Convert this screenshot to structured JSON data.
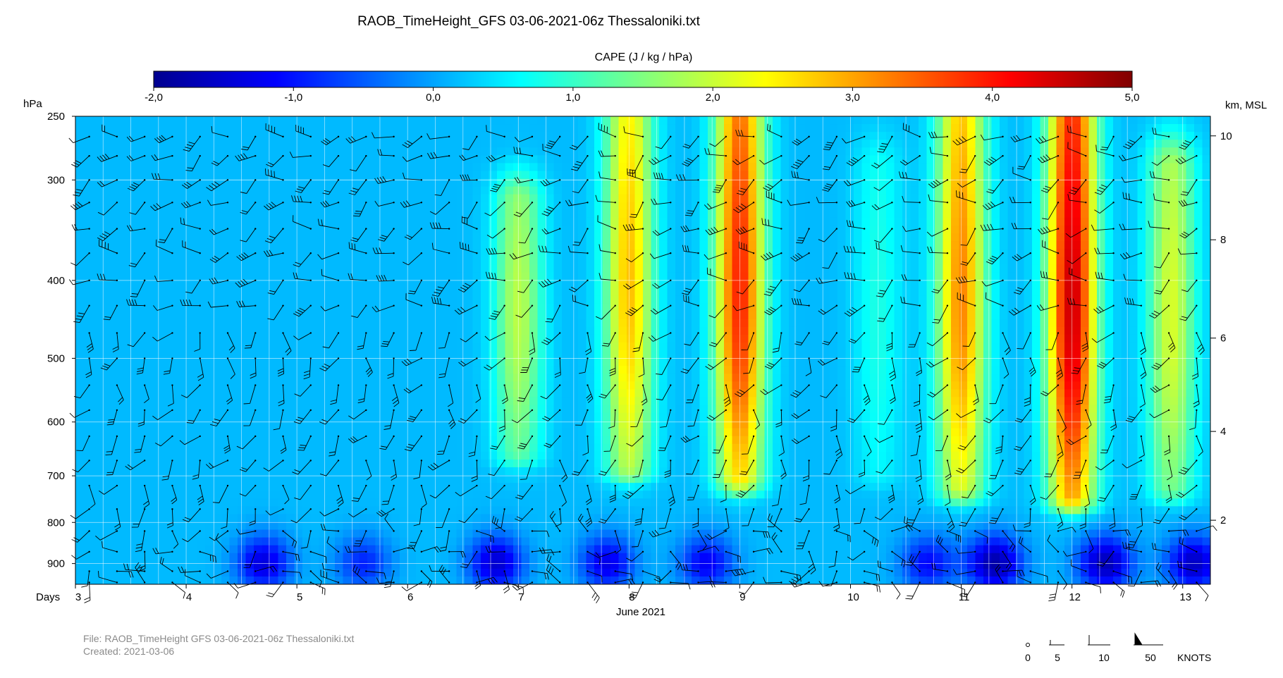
{
  "chart_data": {
    "type": "heatmap",
    "title": "RAOB_TimeHeight_GFS 03-06-2021-06z Thessaloniki.txt",
    "colorbar": {
      "label": "CAPE (J / kg / hPa)",
      "min": -2.0,
      "max": 5.0,
      "ticks": [
        "-2,0",
        "-1,0",
        "0,0",
        "1,0",
        "2,0",
        "3,0",
        "4,0",
        "5,0"
      ],
      "colors": [
        "#00008f",
        "#0000ff",
        "#0080ff",
        "#00ffff",
        "#80ff80",
        "#ffff00",
        "#ff8000",
        "#ff0000",
        "#800000"
      ]
    },
    "y_left": {
      "label": "hPa",
      "range": [
        955,
        250
      ],
      "ticks": [
        250,
        300,
        400,
        500,
        600,
        700,
        800,
        900
      ]
    },
    "y_right": {
      "label": "km, MSL",
      "ticks": [
        10,
        8,
        6,
        4,
        2
      ]
    },
    "x": {
      "label": "Days",
      "range": [
        3.0,
        13.25
      ],
      "ticks": [
        "3",
        "4",
        "5",
        "6",
        "7",
        "8",
        "9",
        "10",
        "11",
        "12",
        "13"
      ],
      "month_label": "June 2021"
    },
    "cape_columns": [
      {
        "day": 7.0,
        "max": 1.9,
        "top": 320,
        "bottom": 650
      },
      {
        "day": 8.0,
        "max": 2.8,
        "top": 250,
        "bottom": 680
      },
      {
        "day": 9.0,
        "max": 3.9,
        "top": 250,
        "bottom": 700
      },
      {
        "day": 10.25,
        "max": 0.8,
        "top": 290,
        "bottom": 690
      },
      {
        "day": 11.0,
        "max": 3.2,
        "top": 250,
        "bottom": 720
      },
      {
        "day": 12.0,
        "max": 4.5,
        "top": 250,
        "bottom": 740
      },
      {
        "day": 12.9,
        "max": 2.1,
        "top": 290,
        "bottom": 720
      }
    ],
    "low_level_minima": [
      {
        "day": 4.7,
        "value": -1.4
      },
      {
        "day": 5.6,
        "value": -0.9
      },
      {
        "day": 6.8,
        "value": -1.5
      },
      {
        "day": 7.8,
        "value": -1.3
      },
      {
        "day": 8.7,
        "value": -1.2
      },
      {
        "day": 10.7,
        "value": -1.1
      },
      {
        "day": 11.3,
        "value": -1.8
      },
      {
        "day": 12.3,
        "value": -1.7
      },
      {
        "day": 13.1,
        "value": -1.6
      }
    ],
    "wind_barbs": "Wind barbs shown on a 6-hourly time grid at each pressure level"
  },
  "wind_legend": {
    "values": [
      "0",
      "5",
      "10",
      "50"
    ],
    "units": "KNOTS"
  },
  "footer": {
    "file_line": "File: RAOB_TimeHeight  GFS 03-06-2021-06z Thessaloniki.txt",
    "created_line": "Created:  2021-03-06"
  }
}
